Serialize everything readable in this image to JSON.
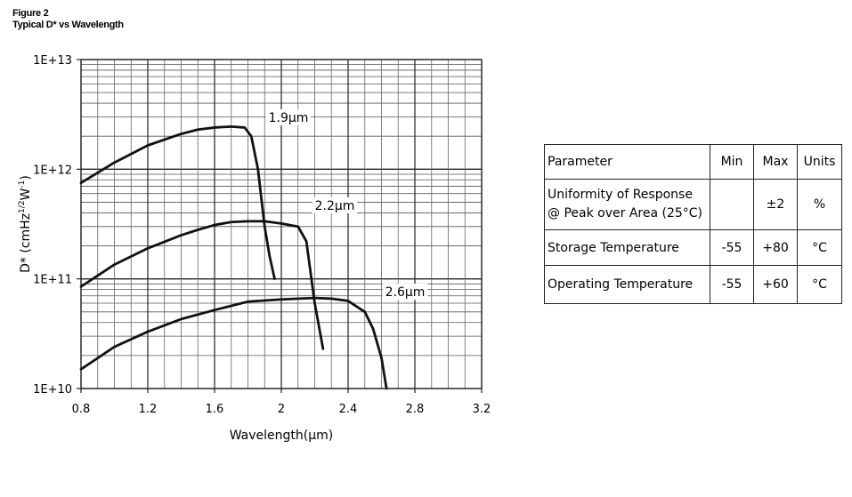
{
  "figure": {
    "label": "Figure 2",
    "subtitle": "Typical D* vs Wavelength"
  },
  "chart_data": {
    "type": "line",
    "xlabel": "Wavelength(μm)",
    "ylabel": "D* (cmHz1/2W-1)",
    "ylabel_parts": {
      "base": "D* (cmHz",
      "sup1": "1/2",
      "mid": "W",
      "sup2": "-1",
      "end": ")"
    },
    "xlim": [
      0.8,
      3.2
    ],
    "ylim": [
      10000000000.0,
      10000000000000.0
    ],
    "yscale": "log",
    "grid": true,
    "x_ticks": [
      0.8,
      1.2,
      1.6,
      2,
      2.4,
      2.8,
      3.2
    ],
    "x_tick_labels": [
      "0.8",
      "1.2",
      "1.6",
      "2",
      "2.4",
      "2.8",
      "3.2"
    ],
    "y_ticks": [
      10000000000.0,
      100000000000.0,
      1000000000000.0,
      10000000000000.0
    ],
    "y_tick_labels": [
      "1E+10",
      "1E+11",
      "1E+12",
      "1E+13"
    ],
    "series": [
      {
        "name": "1.9μm",
        "x": [
          0.8,
          1.0,
          1.2,
          1.4,
          1.5,
          1.6,
          1.7,
          1.78,
          1.82,
          1.86,
          1.9,
          1.93,
          1.96
        ],
        "y": [
          750000000000.0,
          1150000000000.0,
          1650000000000.0,
          2100000000000.0,
          2300000000000.0,
          2400000000000.0,
          2450000000000.0,
          2400000000000.0,
          2000000000000.0,
          1000000000000.0,
          300000000000.0,
          160000000000.0,
          100000000000.0
        ]
      },
      {
        "name": "2.2μm",
        "x": [
          0.8,
          1.0,
          1.2,
          1.4,
          1.5,
          1.6,
          1.7,
          1.8,
          1.9,
          2.0,
          2.1,
          2.15,
          2.2,
          2.25
        ],
        "y": [
          85000000000.0,
          135000000000.0,
          190000000000.0,
          250000000000.0,
          280000000000.0,
          310000000000.0,
          330000000000.0,
          335000000000.0,
          335000000000.0,
          320000000000.0,
          300000000000.0,
          220000000000.0,
          60000000000.0,
          23000000000.0
        ]
      },
      {
        "name": "2.6μm",
        "x": [
          0.8,
          1.0,
          1.2,
          1.4,
          1.6,
          1.8,
          2.0,
          2.2,
          2.3,
          2.4,
          2.5,
          2.55,
          2.6,
          2.63
        ],
        "y": [
          15000000000.0,
          24000000000.0,
          33000000000.0,
          43000000000.0,
          52000000000.0,
          62000000000.0,
          65000000000.0,
          67000000000.0,
          66000000000.0,
          63000000000.0,
          50000000000.0,
          35000000000.0,
          19000000000.0,
          10000000000.0
        ]
      }
    ]
  },
  "table": {
    "headers": [
      "Parameter",
      "Min",
      "Max",
      "Units"
    ],
    "rows": [
      {
        "param_line1": "Uniformity of Response",
        "param_line2": "@ Peak over Area (25°C)",
        "min": "",
        "max": "±2",
        "units": "%"
      },
      {
        "param_line1": "Storage Temperature",
        "param_line2": "",
        "min": "-55",
        "max": "+80",
        "units": "°C"
      },
      {
        "param_line1": "Operating Temperature",
        "param_line2": "",
        "min": "-55",
        "max": "+60",
        "units": "°C"
      }
    ]
  }
}
